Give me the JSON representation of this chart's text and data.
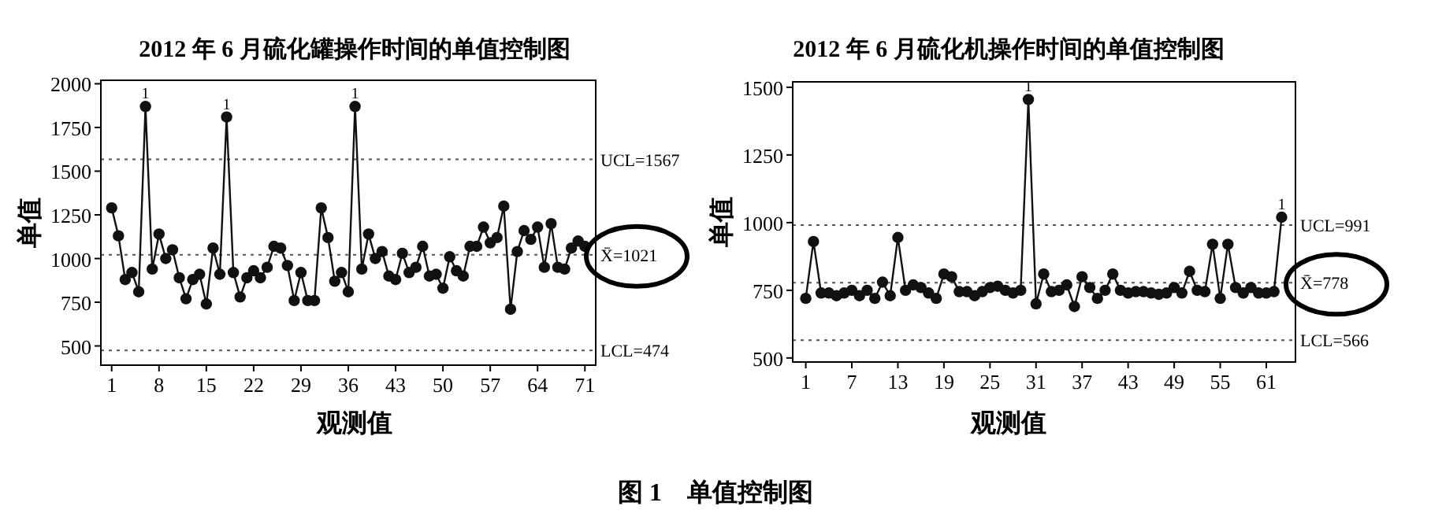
{
  "chart_data": [
    {
      "type": "line",
      "title": "2012 年 6 月硫化罐操作时间的单值控制图",
      "xlabel": "观测值",
      "ylabel": "单值",
      "marker": "circle",
      "line_style": "solid",
      "x": [
        1,
        2,
        3,
        4,
        5,
        6,
        7,
        8,
        9,
        10,
        11,
        12,
        13,
        14,
        15,
        16,
        17,
        18,
        19,
        20,
        21,
        22,
        23,
        24,
        25,
        26,
        27,
        28,
        29,
        30,
        31,
        32,
        33,
        34,
        35,
        36,
        37,
        38,
        39,
        40,
        41,
        42,
        43,
        44,
        45,
        46,
        47,
        48,
        49,
        50,
        51,
        52,
        53,
        54,
        55,
        56,
        57,
        58,
        59,
        60,
        61,
        62,
        63,
        64,
        65,
        66,
        67,
        68,
        69,
        70,
        71
      ],
      "series": [
        {
          "color": "#111111",
          "values": [
            1290,
            1130,
            880,
            920,
            810,
            1870,
            940,
            1140,
            1000,
            1050,
            890,
            770,
            880,
            910,
            740,
            1060,
            910,
            1810,
            920,
            780,
            890,
            930,
            890,
            950,
            1070,
            1060,
            960,
            760,
            920,
            760,
            760,
            1290,
            1120,
            870,
            920,
            810,
            1870,
            940,
            1140,
            1000,
            1040,
            900,
            880,
            1030,
            920,
            950,
            1070,
            900,
            910,
            830,
            1010,
            930,
            900,
            1070,
            1070,
            1180,
            1090,
            1120,
            1300,
            710,
            1040,
            1160,
            1110,
            1180,
            950,
            1200,
            950,
            940,
            1060,
            1100,
            1070
          ]
        }
      ],
      "xlim": [
        -0.6,
        72.6
      ],
      "xticks": [
        1,
        8,
        15,
        22,
        29,
        36,
        43,
        50,
        57,
        64,
        71
      ],
      "ylim": [
        390,
        2020
      ],
      "yticks": [
        500,
        750,
        1000,
        1250,
        1500,
        1750,
        2000
      ],
      "ref_lines": [
        {
          "axis": "y",
          "value": 1567,
          "label": "UCL=1567",
          "line_style": "dotted",
          "color": "#555555"
        },
        {
          "axis": "y",
          "value": 1021,
          "label": "X̄=1021",
          "line_style": "dotted",
          "color": "#555555"
        },
        {
          "axis": "y",
          "value": 474,
          "label": "LCL=474",
          "line_style": "dotted",
          "color": "#555555"
        }
      ],
      "annotations": [
        {
          "text": "1",
          "x": 6,
          "y": 1870
        },
        {
          "text": "1",
          "x": 18,
          "y": 1810
        },
        {
          "text": "1",
          "x": 37,
          "y": 1870
        },
        "图 1　单值控制图"
      ]
    },
    {
      "type": "line",
      "title": "2012 年 6 月硫化机操作时间的单值控制图",
      "xlabel": "观测值",
      "ylabel": "单值",
      "marker": "circle",
      "line_style": "solid",
      "x": [
        1,
        2,
        3,
        4,
        5,
        6,
        7,
        8,
        9,
        10,
        11,
        12,
        13,
        14,
        15,
        16,
        17,
        18,
        19,
        20,
        21,
        22,
        23,
        24,
        25,
        26,
        27,
        28,
        29,
        30,
        31,
        32,
        33,
        34,
        35,
        36,
        37,
        38,
        39,
        40,
        41,
        42,
        43,
        44,
        45,
        46,
        47,
        48,
        49,
        50,
        51,
        52,
        53,
        54,
        55,
        56,
        57,
        58,
        59,
        60,
        61,
        62,
        63
      ],
      "series": [
        {
          "color": "#111111",
          "values": [
            720,
            930,
            740,
            740,
            730,
            740,
            750,
            730,
            750,
            720,
            780,
            730,
            945,
            750,
            770,
            760,
            740,
            720,
            810,
            800,
            745,
            745,
            730,
            745,
            760,
            765,
            750,
            740,
            750,
            1455,
            700,
            810,
            745,
            750,
            770,
            690,
            800,
            760,
            720,
            750,
            810,
            750,
            740,
            745,
            745,
            740,
            735,
            740,
            760,
            740,
            820,
            750,
            745,
            920,
            720,
            920,
            760,
            740,
            760,
            740,
            740,
            745,
            1020
          ]
        }
      ],
      "xlim": [
        -0.7,
        64.8
      ],
      "xticks": [
        1,
        7,
        13,
        19,
        25,
        31,
        37,
        43,
        49,
        55,
        61
      ],
      "ylim": [
        485,
        1520
      ],
      "yticks": [
        500,
        750,
        1000,
        1250,
        1500
      ],
      "ref_lines": [
        {
          "axis": "y",
          "value": 991,
          "label": "UCL=991",
          "line_style": "dotted",
          "color": "#555555"
        },
        {
          "axis": "y",
          "value": 778,
          "label": "X̄=778",
          "line_style": "dotted",
          "color": "#555555"
        },
        {
          "axis": "y",
          "value": 566,
          "label": "LCL=566",
          "line_style": "dotted",
          "color": "#555555"
        }
      ],
      "annotations": [
        {
          "text": "1",
          "x": 30,
          "y": 1455
        },
        {
          "text": "1",
          "x": 63,
          "y": 1020
        }
      ]
    }
  ]
}
